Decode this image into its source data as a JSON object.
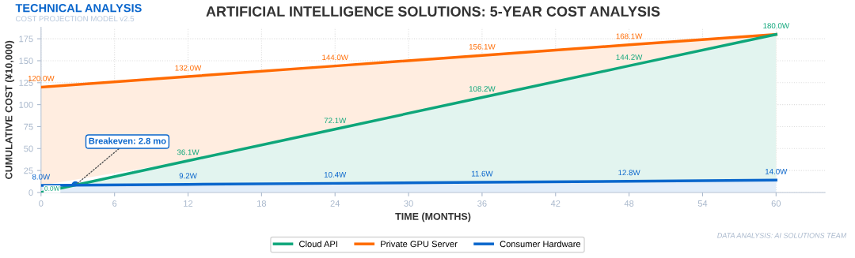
{
  "chart_data": {
    "type": "area",
    "title": "ARTIFICIAL INTELLIGENCE SOLUTIONS: 5-YEAR COST ANALYSIS",
    "xlabel": "TIME (MONTHS)",
    "ylabel": "CUMULATIVE COST (¥10,000)",
    "x": [
      0,
      12,
      24,
      36,
      48,
      60
    ],
    "series": [
      {
        "name": "Cloud API",
        "color": "#0ea67a",
        "values": [
          0,
          36.1,
          72.1,
          108.2,
          144.2,
          180.0
        ],
        "value_labels": [
          "0.0W",
          "36.1W",
          "72.1W",
          "108.2W",
          "144.2W",
          "180.0W"
        ]
      },
      {
        "name": "Private GPU Server",
        "color": "#ff6a00",
        "values": [
          120,
          132,
          144,
          156.1,
          168.1,
          180.0
        ],
        "value_labels": [
          "120.0W",
          "132.0W",
          "144.0W",
          "156.1W",
          "168.1W",
          null
        ]
      },
      {
        "name": "Consumer Hardware",
        "color": "#0a66cc",
        "values": [
          8,
          9.2,
          10.4,
          11.6,
          12.8,
          14.0
        ],
        "value_labels": [
          "8.0W",
          "9.2W",
          "10.4W",
          "11.6W",
          "12.8W",
          "14.0W"
        ]
      }
    ],
    "xlim": [
      0,
      64
    ],
    "xticks": [
      0,
      6,
      12,
      18,
      24,
      30,
      36,
      42,
      48,
      54,
      60
    ],
    "ylim": [
      0,
      188
    ],
    "yticks": [
      0,
      25,
      50,
      75,
      100,
      125,
      150,
      175
    ],
    "grid": true,
    "legend": "bottom",
    "annotations": [
      {
        "text": "Breakeven: 2.8 mo",
        "x": 2.8,
        "y": 8.3
      },
      "TECHNICAL ANALYSIS",
      "COST PROJECTION MODEL v2.5",
      "DATA ANALYSIS: AI SOLUTIONS TEAM"
    ]
  }
}
